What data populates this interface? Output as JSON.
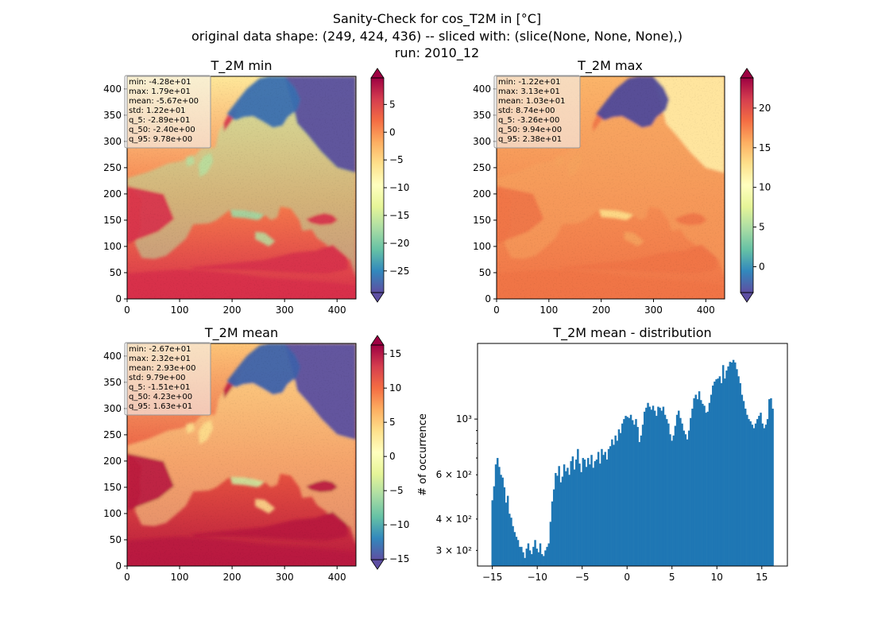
{
  "suptitle": {
    "line1": "Sanity-Check for cos_T2M in [°C]",
    "line2": "original data shape: (249, 424, 436) -- sliced with: (slice(None, None, None),)",
    "line3": "run: 2010_12"
  },
  "colors": {
    "spectral_r": [
      "#5e4fa2",
      "#3288bd",
      "#66c2a5",
      "#abdda4",
      "#e6f598",
      "#ffffbf",
      "#fee08b",
      "#fdae61",
      "#f46d43",
      "#d53e4f",
      "#9e0142"
    ],
    "hist_bar": "#1f77b4",
    "stats_box_bg": "#f5f5f5",
    "stats_box_edge": "#9a9a9a"
  },
  "chart_data": [
    {
      "type": "heatmap",
      "title": "T_2M min",
      "xlim": [
        0,
        436
      ],
      "ylim": [
        0,
        424
      ],
      "xticks": [
        "0",
        "100",
        "200",
        "300",
        "400"
      ],
      "yticks": [
        "0",
        "50",
        "100",
        "150",
        "200",
        "250",
        "300",
        "350",
        "400"
      ],
      "colorbar": {
        "range": [
          -28.9,
          9.78
        ],
        "ticks": [
          "5",
          "0",
          "−5",
          "−10",
          "−15",
          "−20",
          "−25"
        ],
        "extend": "both"
      },
      "stats": [
        "min: -4.28e+01",
        "max: 1.79e+01",
        "mean: -5.67e+00",
        "std: 1.22e+01",
        "q_5: -2.89e+01",
        "q_50: -2.40e+00",
        "q_95: 9.78e+00"
      ]
    },
    {
      "type": "heatmap",
      "title": "T_2M max",
      "xlim": [
        0,
        436
      ],
      "ylim": [
        0,
        424
      ],
      "xticks": [
        "0",
        "100",
        "200",
        "300",
        "400"
      ],
      "yticks": [
        "0",
        "50",
        "100",
        "150",
        "200",
        "250",
        "300",
        "350",
        "400"
      ],
      "colorbar": {
        "range": [
          -3.26,
          23.8
        ],
        "ticks": [
          "20",
          "15",
          "10",
          "5",
          "0"
        ],
        "extend": "both"
      },
      "stats": [
        "min: -1.22e+01",
        "max: 3.13e+01",
        "mean: 1.03e+01",
        "std: 8.74e+00",
        "q_5: -3.26e+00",
        "q_50: 9.94e+00",
        "q_95: 2.38e+01"
      ]
    },
    {
      "type": "heatmap",
      "title": "T_2M mean",
      "xlim": [
        0,
        436
      ],
      "ylim": [
        0,
        424
      ],
      "xticks": [
        "0",
        "100",
        "200",
        "300",
        "400"
      ],
      "yticks": [
        "0",
        "50",
        "100",
        "150",
        "200",
        "250",
        "300",
        "350",
        "400"
      ],
      "colorbar": {
        "range": [
          -15.1,
          16.3
        ],
        "ticks": [
          "15",
          "10",
          "5",
          "0",
          "−5",
          "−10",
          "−15"
        ],
        "extend": "both"
      },
      "stats": [
        "min: -2.67e+01",
        "max: 2.32e+01",
        "mean: 2.93e+00",
        "std: 9.79e+00",
        "q_5: -1.51e+01",
        "q_50: 4.23e+00",
        "q_95: 1.63e+01"
      ]
    },
    {
      "type": "bar",
      "title": "T_2M mean - distribution",
      "ylabel": "# of occurrence",
      "yscale": "log",
      "xlim": [
        -16.65,
        17.85
      ],
      "ylim": [
        260,
        2000
      ],
      "xticks": [
        "−15",
        "−10",
        "−5",
        "0",
        "5",
        "10",
        "15"
      ],
      "yticks": [
        "3 × 10²",
        "4 × 10²",
        "6 × 10²",
        "10³"
      ],
      "bins": {
        "start": -15.1,
        "end": 16.3
      },
      "counts": [
        475,
        540,
        660,
        700,
        645,
        600,
        585,
        535,
        465,
        495,
        420,
        405,
        375,
        355,
        340,
        330,
        310,
        310,
        295,
        280,
        305,
        320,
        300,
        290,
        310,
        330,
        305,
        295,
        320,
        290,
        285,
        300,
        310,
        320,
        390,
        470,
        525,
        610,
        595,
        650,
        560,
        590,
        660,
        620,
        640,
        600,
        680,
        710,
        630,
        690,
        760,
        665,
        615,
        700,
        690,
        645,
        700,
        660,
        720,
        640,
        680,
        690,
        740,
        665,
        760,
        720,
        740,
        690,
        760,
        780,
        830,
        790,
        860,
        820,
        910,
        880,
        960,
        1000,
        1030,
        1020,
        1010,
        1040,
        990,
        950,
        1000,
        930,
        810,
        860,
        950,
        1070,
        1110,
        1160,
        1120,
        1090,
        1130,
        1080,
        1030,
        1120,
        1110,
        1080,
        1120,
        1040,
        1000,
        960,
        870,
        820,
        860,
        940,
        1040,
        1080,
        1010,
        960,
        900,
        870,
        830,
        900,
        1010,
        1100,
        1210,
        1250,
        1200,
        1290,
        1190,
        1150,
        1130,
        1060,
        1070,
        1160,
        1250,
        1360,
        1410,
        1440,
        1450,
        1480,
        1390,
        1640,
        1450,
        1560,
        1620,
        1690,
        1680,
        1720,
        1680,
        1580,
        1480,
        1390,
        1250,
        1180,
        1100,
        1040,
        1000,
        980,
        950,
        920,
        960,
        1000,
        1030,
        1060,
        960,
        920,
        950,
        1000,
        1200,
        1210,
        1100
      ]
    }
  ]
}
